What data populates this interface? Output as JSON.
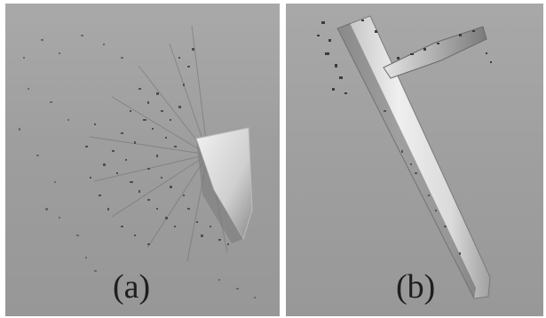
{
  "panels": [
    {
      "caption": "(a)"
    },
    {
      "caption": "(b)"
    }
  ],
  "colors": {
    "background_gray": "#a3a3a3",
    "cloud_dark": "#4a4a4a",
    "surface_light": "#e6e6e6",
    "frame_white": "#ffffff"
  }
}
